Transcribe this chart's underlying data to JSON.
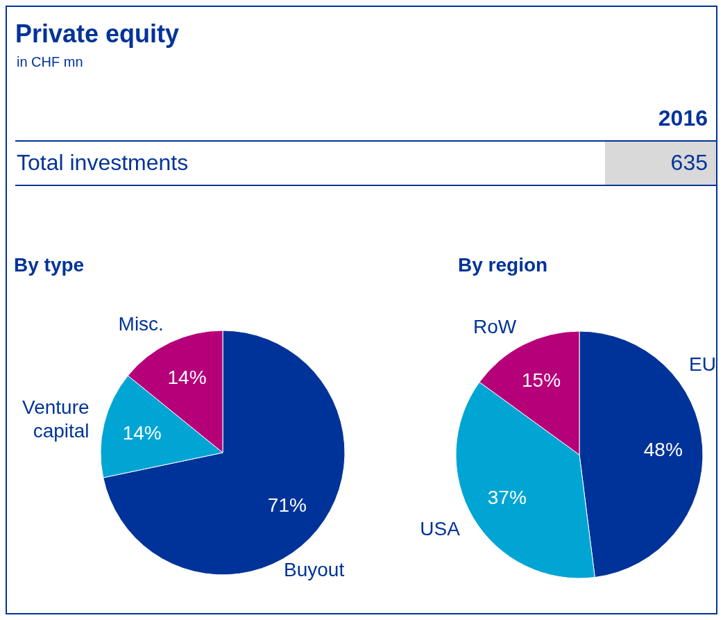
{
  "chart_data": [
    {
      "type": "other",
      "title": "Private equity",
      "subtitle": "in CHF mn",
      "annotations": [
        "2016",
        "Total investments",
        "635"
      ]
    },
    {
      "type": "pie",
      "title": "By type",
      "categories": [
        "Buyout",
        "Venture capital",
        "Misc."
      ],
      "values": [
        71,
        14,
        14
      ],
      "value_labels": [
        "71%",
        "14%",
        "14%"
      ],
      "colors": [
        "#003399",
        "#00a5d4",
        "#b5007a"
      ]
    },
    {
      "type": "pie",
      "title": "By region",
      "categories": [
        "EU",
        "USA",
        "RoW"
      ],
      "values": [
        48,
        37,
        15
      ],
      "value_labels": [
        "48%",
        "37%",
        "15%"
      ],
      "colors": [
        "#003399",
        "#00a5d4",
        "#b5007a"
      ]
    }
  ]
}
